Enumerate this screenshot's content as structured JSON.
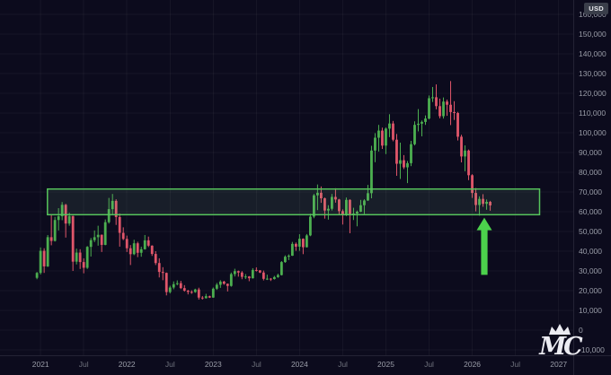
{
  "window": {
    "currency_badge": "USD"
  },
  "watermark": {
    "text": "MC"
  },
  "colors": {
    "background": "#0c0b1d",
    "up": "#4caf50",
    "down": "#e0566a",
    "zone_fill": "rgba(134,204,144,0.10)",
    "zone_border": "#56c45c",
    "arrow": "#4cd14c",
    "axis_text": "#9a9da8",
    "axis_text_minor": "#6f727d",
    "grid": "rgba(255,255,255,0.045)",
    "axis_line": "rgba(255,255,255,0.10)"
  },
  "chart_data": {
    "type": "candlestick",
    "description": "BTC price in USD, semi-monthly candles 2021-2026 with green support zone and up arrow",
    "xlim": [
      2020.53,
      2027.17
    ],
    "ylim": [
      -10000,
      160000
    ],
    "price_unit": 1000,
    "candle_start_time": 2020.958,
    "candle_interval": 0.0416667,
    "x_ticks": [
      {
        "t": 2021.0,
        "label": "2021",
        "major": true
      },
      {
        "t": 2021.5,
        "label": "Jul",
        "major": false
      },
      {
        "t": 2022.0,
        "label": "2022",
        "major": true
      },
      {
        "t": 2022.5,
        "label": "Jul",
        "major": false
      },
      {
        "t": 2023.0,
        "label": "2023",
        "major": true
      },
      {
        "t": 2023.5,
        "label": "Jul",
        "major": false
      },
      {
        "t": 2024.0,
        "label": "2024",
        "major": true
      },
      {
        "t": 2024.5,
        "label": "Jul",
        "major": false
      },
      {
        "t": 2025.0,
        "label": "2025",
        "major": true
      },
      {
        "t": 2025.5,
        "label": "Jul",
        "major": false
      },
      {
        "t": 2026.0,
        "label": "2026",
        "major": true
      },
      {
        "t": 2026.5,
        "label": "Jul",
        "major": false
      },
      {
        "t": 2027.0,
        "label": "2027",
        "major": true
      }
    ],
    "y_ticks": [
      {
        "v": 160000,
        "label": "160,000"
      },
      {
        "v": 150000,
        "label": "150,000"
      },
      {
        "v": 140000,
        "label": "140,000"
      },
      {
        "v": 130000,
        "label": "130,000"
      },
      {
        "v": 120000,
        "label": "120,000"
      },
      {
        "v": 110000,
        "label": "110,000"
      },
      {
        "v": 100000,
        "label": "100,000"
      },
      {
        "v": 90000,
        "label": "90,000"
      },
      {
        "v": 80000,
        "label": "80,000"
      },
      {
        "v": 70000,
        "label": "70,000"
      },
      {
        "v": 60000,
        "label": "60,000"
      },
      {
        "v": 50000,
        "label": "50,000"
      },
      {
        "v": 40000,
        "label": "40,000"
      },
      {
        "v": 30000,
        "label": "30,000"
      },
      {
        "v": 20000,
        "label": "20,000"
      },
      {
        "v": 10000,
        "label": "10,000"
      },
      {
        "v": 0,
        "label": "0"
      },
      {
        "v": -10000,
        "label": "-10,000"
      }
    ],
    "candles": [
      [
        26.5,
        29.5,
        25.8,
        29.0
      ],
      [
        29.0,
        41.9,
        28.2,
        40.2
      ],
      [
        40.2,
        41.5,
        29.0,
        32.3
      ],
      [
        32.3,
        48.2,
        32.0,
        47.1
      ],
      [
        47.1,
        58.3,
        43.0,
        45.2
      ],
      [
        45.2,
        57.4,
        44.9,
        55.8
      ],
      [
        55.8,
        61.8,
        50.5,
        57.7
      ],
      [
        57.7,
        64.9,
        55.7,
        63.5
      ],
      [
        63.5,
        64.0,
        46.9,
        54.0
      ],
      [
        54.0,
        59.5,
        52.9,
        57.8
      ],
      [
        57.8,
        58.0,
        30.0,
        34.7
      ],
      [
        34.7,
        41.3,
        33.3,
        39.3
      ],
      [
        39.3,
        41.0,
        31.0,
        34.5
      ],
      [
        34.5,
        36.4,
        28.8,
        31.6
      ],
      [
        31.6,
        42.6,
        31.0,
        42.2
      ],
      [
        42.2,
        46.7,
        37.3,
        45.6
      ],
      [
        45.6,
        50.5,
        44.6,
        47.1
      ],
      [
        47.1,
        52.9,
        42.8,
        48.3
      ],
      [
        48.3,
        48.5,
        39.6,
        43.2
      ],
      [
        43.2,
        56.1,
        43.0,
        54.7
      ],
      [
        54.7,
        67.0,
        54.0,
        61.3
      ],
      [
        61.3,
        69.0,
        58.6,
        65.5
      ],
      [
        65.5,
        66.3,
        53.3,
        57.3
      ],
      [
        57.3,
        59.1,
        42.3,
        49.3
      ],
      [
        49.3,
        52.1,
        45.6,
        46.2
      ],
      [
        46.2,
        47.9,
        39.6,
        41.5
      ],
      [
        41.5,
        43.1,
        33.0,
        38.5
      ],
      [
        38.5,
        45.8,
        38.0,
        44.0
      ],
      [
        44.0,
        44.8,
        37.0,
        39.2
      ],
      [
        39.2,
        42.3,
        37.2,
        41.0
      ],
      [
        41.0,
        48.2,
        40.8,
        45.5
      ],
      [
        45.5,
        47.4,
        42.1,
        42.8
      ],
      [
        42.8,
        43.0,
        37.6,
        38.6
      ],
      [
        38.6,
        40.0,
        33.0,
        34.0
      ],
      [
        34.0,
        36.4,
        26.7,
        29.5
      ],
      [
        29.5,
        31.9,
        25.3,
        29.0
      ],
      [
        29.0,
        29.2,
        17.6,
        19.3
      ],
      [
        19.3,
        22.5,
        18.6,
        21.6
      ],
      [
        21.6,
        24.7,
        20.7,
        23.3
      ],
      [
        23.3,
        25.2,
        22.7,
        23.8
      ],
      [
        23.8,
        25.0,
        20.8,
        21.3
      ],
      [
        21.3,
        22.8,
        19.5,
        20.0
      ],
      [
        20.0,
        20.4,
        18.1,
        19.4
      ],
      [
        19.4,
        20.2,
        18.4,
        19.3
      ],
      [
        19.3,
        21.0,
        18.9,
        20.6
      ],
      [
        20.6,
        21.5,
        15.5,
        16.5
      ],
      [
        16.5,
        17.3,
        15.5,
        16.2
      ],
      [
        16.2,
        18.4,
        16.0,
        17.2
      ],
      [
        17.2,
        17.5,
        16.3,
        16.5
      ],
      [
        16.5,
        21.6,
        16.4,
        21.0
      ],
      [
        21.0,
        23.9,
        20.4,
        23.0
      ],
      [
        23.0,
        25.3,
        21.4,
        24.6
      ],
      [
        24.6,
        25.0,
        23.0,
        23.5
      ],
      [
        23.5,
        23.6,
        19.6,
        22.4
      ],
      [
        22.4,
        29.2,
        22.0,
        28.4
      ],
      [
        28.4,
        31.1,
        27.2,
        29.9
      ],
      [
        29.9,
        30.2,
        27.1,
        29.2
      ],
      [
        29.2,
        29.9,
        25.8,
        27.0
      ],
      [
        27.0,
        28.4,
        25.9,
        27.2
      ],
      [
        27.2,
        27.4,
        24.8,
        26.3
      ],
      [
        26.3,
        31.4,
        26.1,
        30.5
      ],
      [
        30.5,
        31.8,
        29.7,
        30.3
      ],
      [
        30.3,
        30.4,
        28.9,
        29.2
      ],
      [
        29.2,
        30.2,
        25.2,
        26.0
      ],
      [
        26.0,
        28.1,
        25.4,
        26.1
      ],
      [
        26.1,
        26.4,
        24.9,
        25.9
      ],
      [
        25.9,
        27.5,
        25.6,
        26.9
      ],
      [
        26.9,
        28.6,
        26.5,
        27.9
      ],
      [
        27.9,
        35.0,
        27.7,
        34.5
      ],
      [
        34.5,
        37.9,
        34.1,
        37.2
      ],
      [
        37.2,
        38.4,
        35.5,
        37.7
      ],
      [
        37.7,
        44.7,
        37.6,
        43.7
      ],
      [
        43.7,
        44.4,
        40.2,
        42.3
      ],
      [
        42.3,
        48.6,
        40.2,
        46.3
      ],
      [
        46.3,
        46.5,
        38.5,
        42.0
      ],
      [
        42.0,
        48.7,
        41.9,
        48.0
      ],
      [
        48.0,
        59.0,
        47.6,
        57.5
      ],
      [
        57.5,
        69.0,
        56.7,
        68.3
      ],
      [
        68.3,
        73.8,
        60.8,
        69.6
      ],
      [
        69.6,
        72.8,
        64.5,
        66.8
      ],
      [
        66.8,
        67.2,
        56.5,
        60.6
      ],
      [
        60.6,
        63.3,
        56.0,
        61.5
      ],
      [
        61.5,
        69.0,
        60.6,
        67.5
      ],
      [
        67.5,
        71.9,
        64.6,
        66.2
      ],
      [
        66.2,
        66.5,
        58.4,
        60.3
      ],
      [
        60.3,
        61.2,
        53.5,
        58.2
      ],
      [
        58.2,
        67.2,
        57.8,
        66.0
      ],
      [
        66.0,
        66.3,
        49.1,
        58.7
      ],
      [
        58.7,
        62.0,
        55.8,
        59.1
      ],
      [
        59.1,
        60.6,
        52.6,
        60.0
      ],
      [
        60.0,
        66.0,
        59.8,
        63.3
      ],
      [
        63.3,
        66.3,
        58.9,
        65.7
      ],
      [
        65.7,
        73.6,
        65.5,
        69.4
      ],
      [
        69.4,
        93.4,
        66.8,
        91.0
      ],
      [
        91.0,
        99.8,
        85.1,
        97.5
      ],
      [
        97.5,
        104.0,
        90.5,
        101.1
      ],
      [
        101.1,
        102.6,
        91.8,
        93.5
      ],
      [
        93.5,
        102.7,
        89.2,
        102.1
      ],
      [
        102.1,
        109.4,
        97.8,
        104.7
      ],
      [
        104.7,
        106.0,
        95.7,
        96.5
      ],
      [
        96.5,
        99.4,
        78.2,
        84.3
      ],
      [
        84.3,
        95.0,
        76.6,
        86.1
      ],
      [
        86.1,
        88.7,
        81.6,
        82.5
      ],
      [
        82.5,
        85.7,
        74.5,
        84.6
      ],
      [
        84.6,
        95.9,
        83.1,
        94.2
      ],
      [
        94.2,
        105.8,
        93.6,
        104.0
      ],
      [
        104.0,
        112.0,
        100.7,
        104.6
      ],
      [
        104.6,
        106.2,
        98.2,
        105.5
      ],
      [
        105.5,
        108.8,
        104.0,
        107.2
      ],
      [
        107.2,
        118.9,
        106.8,
        117.5
      ],
      [
        117.5,
        123.2,
        115.6,
        118.0
      ],
      [
        118.0,
        124.5,
        111.9,
        113.5
      ],
      [
        113.5,
        117.3,
        107.3,
        108.4
      ],
      [
        108.4,
        117.9,
        107.2,
        115.8
      ],
      [
        115.8,
        116.8,
        108.6,
        114.2
      ],
      [
        114.2,
        126.2,
        103.9,
        110.5
      ],
      [
        110.5,
        116.0,
        106.5,
        110.0
      ],
      [
        110.0,
        110.6,
        96.1,
        98.0
      ],
      [
        98.0,
        99.0,
        85.0,
        88.0
      ],
      [
        88.0,
        93.6,
        80.5,
        91.0
      ],
      [
        91.0,
        91.5,
        76.0,
        78.5
      ],
      [
        78.5,
        79.0,
        67.0,
        69.5
      ],
      [
        69.5,
        72.0,
        60.2,
        63.4
      ],
      [
        63.4,
        67.8,
        58.0,
        66.5
      ],
      [
        66.5,
        68.9,
        62.5,
        64.0
      ],
      [
        64.0,
        66.2,
        61.0,
        65.0
      ],
      [
        65.0,
        65.5,
        60.5,
        63.2
      ]
    ],
    "annotations": {
      "support_zone": {
        "t1": 2021.08,
        "t2": 2026.78,
        "price_top": 71500,
        "price_bottom": 58500
      },
      "arrow_up": {
        "t": 2026.14,
        "price_tip": 57000,
        "price_tail": 28000
      }
    }
  }
}
